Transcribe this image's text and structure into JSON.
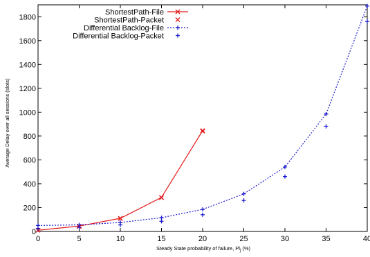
{
  "chart_data": {
    "type": "line",
    "xlabel_main": "Steady State probability of failure, Pl",
    "xlabel_sub": "j",
    "xlabel_suffix": " (%)",
    "ylabel": "Average Delay over all sessions (slots)",
    "xlim": [
      0,
      40
    ],
    "ylim": [
      0,
      1900
    ],
    "x_ticks": [
      0,
      5,
      10,
      15,
      20,
      25,
      30,
      35,
      40
    ],
    "y_ticks": [
      0,
      200,
      400,
      600,
      800,
      1000,
      1200,
      1400,
      1600,
      1800
    ],
    "legend_position": "top-left",
    "series": [
      {
        "name": "ShortestPath-File",
        "style": "line-points",
        "marker": "x",
        "color": "#e41a1c",
        "x": [
          0,
          5,
          10,
          15,
          20
        ],
        "y": [
          10,
          45,
          110,
          285,
          845
        ]
      },
      {
        "name": "ShortestPath-Packet",
        "style": "points",
        "marker": "x",
        "color": "#e41a1c",
        "x": [
          0,
          5,
          10,
          15,
          20
        ],
        "y": [
          10,
          40,
          108,
          283,
          840
        ]
      },
      {
        "name": "Differential Backlog-File",
        "style": "dotted-line-points",
        "marker": "+",
        "color": "#1a1acc",
        "x": [
          0,
          5,
          10,
          15,
          20,
          25,
          30,
          35,
          40
        ],
        "y": [
          50,
          55,
          75,
          115,
          185,
          315,
          540,
          985,
          1890
        ]
      },
      {
        "name": "Differential Backlog-Packet",
        "style": "points",
        "marker": "+",
        "color": "#1a1acc",
        "x": [
          0,
          5,
          10,
          15,
          20,
          25,
          30,
          35,
          40
        ],
        "y": [
          25,
          35,
          55,
          85,
          140,
          260,
          460,
          880,
          1760
        ]
      }
    ]
  }
}
